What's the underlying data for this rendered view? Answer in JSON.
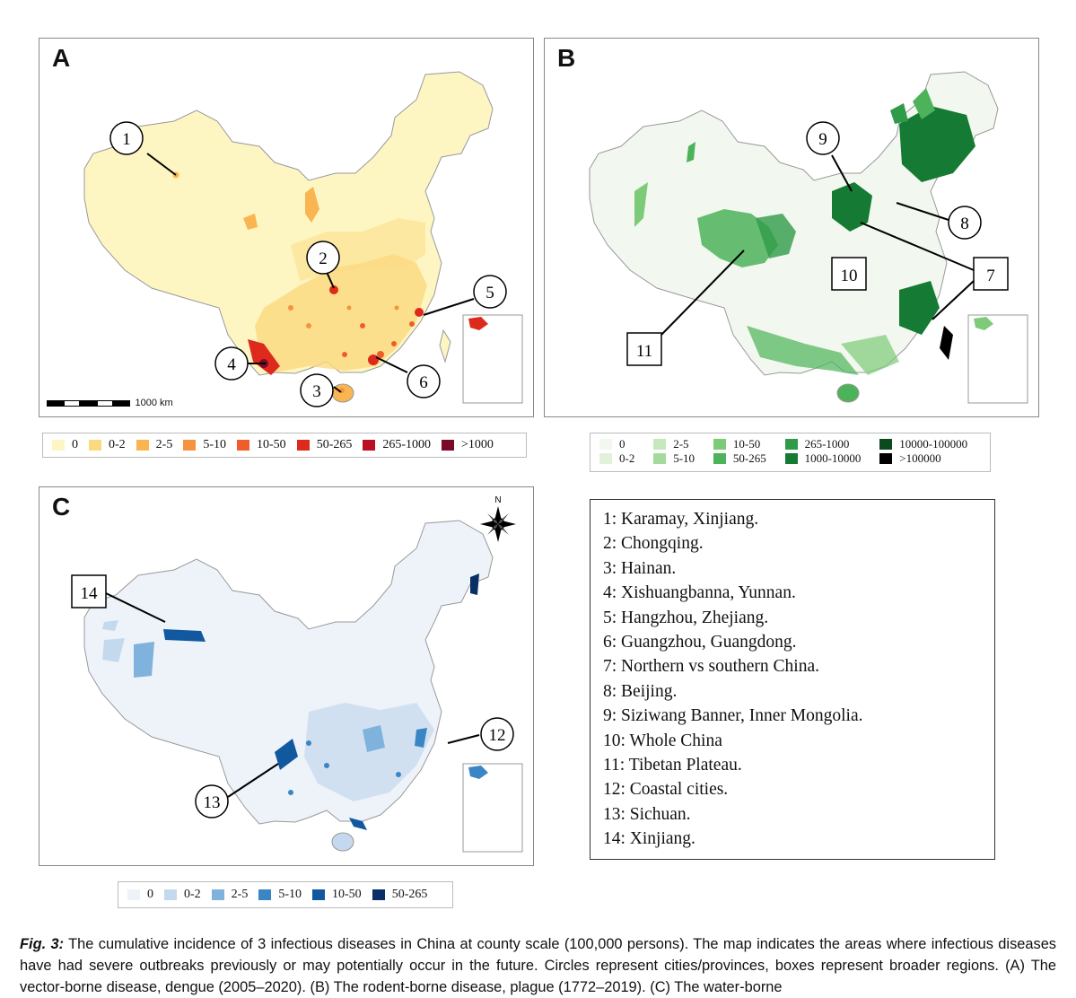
{
  "panels": {
    "a": {
      "label": "A"
    },
    "b": {
      "label": "B"
    },
    "c": {
      "label": "C"
    }
  },
  "scale_bar": {
    "label": "1000 km"
  },
  "compass": {
    "label": "N"
  },
  "legend_a": {
    "items": [
      {
        "label": "0",
        "color": "#fdf6c3"
      },
      {
        "label": "0-2",
        "color": "#fbd97f"
      },
      {
        "label": "2-5",
        "color": "#f8b551"
      },
      {
        "label": "5-10",
        "color": "#f49340"
      },
      {
        "label": "10-50",
        "color": "#ee5d2b"
      },
      {
        "label": "50-265",
        "color": "#de2a1c"
      },
      {
        "label": "265-1000",
        "color": "#b80f25"
      },
      {
        "label": ">1000",
        "color": "#7a0a2a"
      }
    ]
  },
  "legend_b": {
    "items": [
      {
        "label": "0",
        "color": "#f2f8ef"
      },
      {
        "label": "2-5",
        "color": "#c7e7bd"
      },
      {
        "label": "10-50",
        "color": "#7dcb79"
      },
      {
        "label": "265-1000",
        "color": "#2f9b48"
      },
      {
        "label": "10000-100000",
        "color": "#0b4a1f"
      },
      {
        "label": "0-2",
        "color": "#e1f1da"
      },
      {
        "label": "5-10",
        "color": "#a6d99c"
      },
      {
        "label": "50-265",
        "color": "#4db35a"
      },
      {
        "label": "1000-10000",
        "color": "#157a33"
      },
      {
        "label": ">100000",
        "color": "#000000"
      }
    ]
  },
  "legend_c": {
    "items": [
      {
        "label": "0",
        "color": "#eef3fa"
      },
      {
        "label": "0-2",
        "color": "#c5d9ee"
      },
      {
        "label": "2-5",
        "color": "#7fb2dc"
      },
      {
        "label": "5-10",
        "color": "#3a86c5"
      },
      {
        "label": "10-50",
        "color": "#11589f"
      },
      {
        "label": "50-265",
        "color": "#0a2f66"
      }
    ]
  },
  "markers": {
    "a": [
      "1",
      "2",
      "3",
      "4",
      "5",
      "6"
    ],
    "b": [
      "9",
      "8",
      "7",
      "10",
      "11"
    ],
    "c": [
      "14",
      "12",
      "13"
    ]
  },
  "key": [
    "1: Karamay, Xinjiang.",
    "2: Chongqing.",
    "3: Hainan.",
    "4: Xishuangbanna, Yunnan.",
    "5: Hangzhou, Zhejiang.",
    "6: Guangzhou, Guangdong.",
    "7: Northern vs southern China.",
    "8: Beijing.",
    "9: Siziwang Banner, Inner Mongolia.",
    "10: Whole China",
    "11: Tibetan Plateau.",
    "12: Coastal cities.",
    "13: Sichuan.",
    "14: Xinjiang."
  ],
  "caption": {
    "fig_label": "Fig. 3:",
    "text": " The cumulative incidence of 3 infectious diseases in China at county scale (100,000 persons). The map indicates the areas where infectious diseases have had severe outbreaks previously or may potentially occur in the future. Circles represent cities/provinces, boxes represent broader regions. (A) The vector-borne disease, dengue (2005–2020). (B) The rodent-borne disease, plague (1772–2019). (C) The water-borne"
  }
}
